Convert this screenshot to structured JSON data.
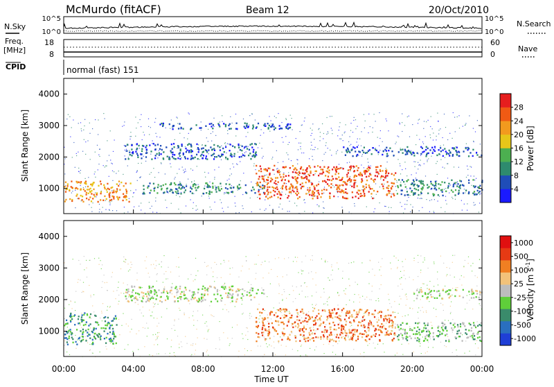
{
  "header": {
    "title": "McMurdo (fitACF)",
    "beam": "Beam 12",
    "date": "20/Oct/2010"
  },
  "noise_panel": {
    "left_label": "N.Sky",
    "right_label": "N.Search",
    "left_ticks": [
      "10^5",
      "10^0"
    ],
    "right_ticks": [
      "10^5",
      "10^0"
    ]
  },
  "freq_panel": {
    "label_line1": "Freq.",
    "label_line2": "[MHz]",
    "left_ticks": [
      18,
      8
    ],
    "right_label": "Nave",
    "right_ticks": [
      60,
      0
    ]
  },
  "cpid": {
    "label": "CPID",
    "mode": "normal (fast) 151"
  },
  "chart_data": [
    {
      "type": "heatmap",
      "name": "power",
      "ylabel": "Slant Range [km]",
      "xlabel": "",
      "ylim": [
        200,
        4500
      ],
      "y_ticks": [
        1000,
        2000,
        3000,
        4000
      ],
      "xlim_hours": [
        0,
        24
      ],
      "colorbar": {
        "label": "Power [dB]",
        "ticks": [
          4,
          8,
          12,
          16,
          20,
          24,
          28
        ],
        "range": [
          0,
          32
        ],
        "colors": [
          "#1a1aff",
          "#1f4db8",
          "#2e8b6e",
          "#4caf50",
          "#e6c619",
          "#f29a1e",
          "#f05a14",
          "#e61e1e"
        ]
      },
      "regions": [
        {
          "h0": 0.0,
          "h1": 3.8,
          "r0": 600,
          "r1": 1250,
          "level": 5
        },
        {
          "h0": 3.5,
          "h1": 11.0,
          "r0": 1950,
          "r1": 2450,
          "level": 1
        },
        {
          "h0": 4.5,
          "h1": 11.5,
          "r0": 850,
          "r1": 1200,
          "level": 2
        },
        {
          "h0": 11.0,
          "h1": 19.0,
          "r0": 700,
          "r1": 1750,
          "level": 6
        },
        {
          "h0": 19.0,
          "h1": 24.0,
          "r0": 800,
          "r1": 1300,
          "level": 2
        },
        {
          "h0": 16.0,
          "h1": 24.0,
          "r0": 2050,
          "r1": 2350,
          "level": 1
        },
        {
          "h0": 5.5,
          "h1": 13.0,
          "r0": 2900,
          "r1": 3100,
          "level": 1
        }
      ]
    },
    {
      "type": "heatmap",
      "name": "velocity",
      "ylabel": "Slant Range [km]",
      "xlabel": "Time UT",
      "ylim": [
        200,
        4500
      ],
      "y_ticks": [
        1000,
        2000,
        3000,
        4000
      ],
      "x_ticks": [
        "00:00",
        "04:00",
        "08:00",
        "12:00",
        "16:00",
        "20:00",
        "00:00"
      ],
      "xlim_hours": [
        0,
        24
      ],
      "colorbar": {
        "label_main": "Velocity  [m s",
        "label_sup": "-1",
        "label_end": "]",
        "ticks": [
          "1000",
          "500",
          "100",
          "25",
          "-25",
          "-100",
          "-500",
          "-1000"
        ],
        "colors": [
          "#1f3fd6",
          "#2a6fbf",
          "#3a8b6b",
          "#5fcf3a",
          "#bdbdbd",
          "#f2c27a",
          "#f07f22",
          "#e63a14",
          "#e01010"
        ]
      },
      "regions": [
        {
          "h0": 0.0,
          "h1": 3.0,
          "r0": 600,
          "r1": 1600,
          "level": 2
        },
        {
          "h0": 3.5,
          "h1": 11.5,
          "r0": 1950,
          "r1": 2450,
          "level": 4
        },
        {
          "h0": 11.0,
          "h1": 19.0,
          "r0": 700,
          "r1": 1750,
          "level": 6
        },
        {
          "h0": 19.0,
          "h1": 24.0,
          "r0": 700,
          "r1": 1300,
          "level": 3
        },
        {
          "h0": 20.0,
          "h1": 24.0,
          "r0": 2050,
          "r1": 2350,
          "level": 4
        }
      ]
    }
  ]
}
